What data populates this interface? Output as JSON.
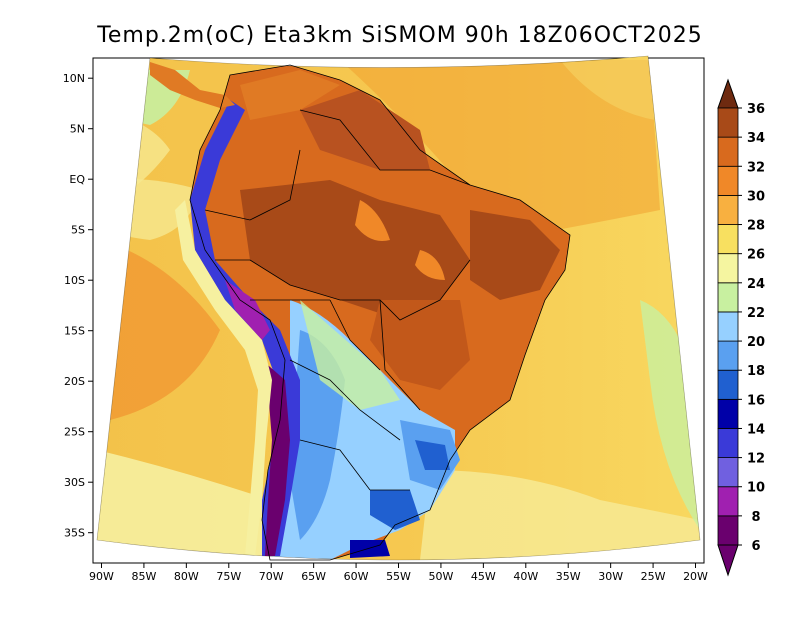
{
  "title": "Temp.2m(oC) Eta3km SiSMOM 90h 18Z06OCT2025",
  "chart_data": {
    "type": "heatmap",
    "title": "Temp.2m(oC) Eta3km SiSMOM 90h 18Z06OCT2025",
    "x_ticks": [
      "90W",
      "85W",
      "80W",
      "75W",
      "70W",
      "65W",
      "60W",
      "55W",
      "50W",
      "45W",
      "40W",
      "35W",
      "30W",
      "25W",
      "20W"
    ],
    "x_values": [
      -90,
      -85,
      -80,
      -75,
      -70,
      -65,
      -60,
      -55,
      -50,
      -45,
      -40,
      -35,
      -30,
      -25,
      -20
    ],
    "y_ticks": [
      "10N",
      "5N",
      "EQ",
      "5S",
      "10S",
      "15S",
      "20S",
      "25S",
      "30S",
      "35S"
    ],
    "y_values": [
      10,
      5,
      0,
      -5,
      -10,
      -15,
      -20,
      -25,
      -30,
      -35
    ],
    "xlim": [
      -91,
      -19
    ],
    "ylim": [
      -38,
      12
    ],
    "colorbar": {
      "labels": [
        "6",
        "8",
        "10",
        "12",
        "14",
        "16",
        "18",
        "20",
        "22",
        "24",
        "26",
        "28",
        "30",
        "32",
        "34",
        "36"
      ],
      "values": [
        6,
        8,
        10,
        12,
        14,
        16,
        18,
        20,
        22,
        24,
        26,
        28,
        30,
        32,
        34,
        36
      ],
      "colors": [
        "#6a006e",
        "#a020b0",
        "#7060e0",
        "#3a3ad8",
        "#0000a8",
        "#2060d0",
        "#5aa0f0",
        "#96d0ff",
        "#c8f0a0",
        "#f5f5a0",
        "#f8e060",
        "#f8b040",
        "#f08828",
        "#d86a1e",
        "#a84a18",
        "#6e2a10"
      ]
    }
  }
}
